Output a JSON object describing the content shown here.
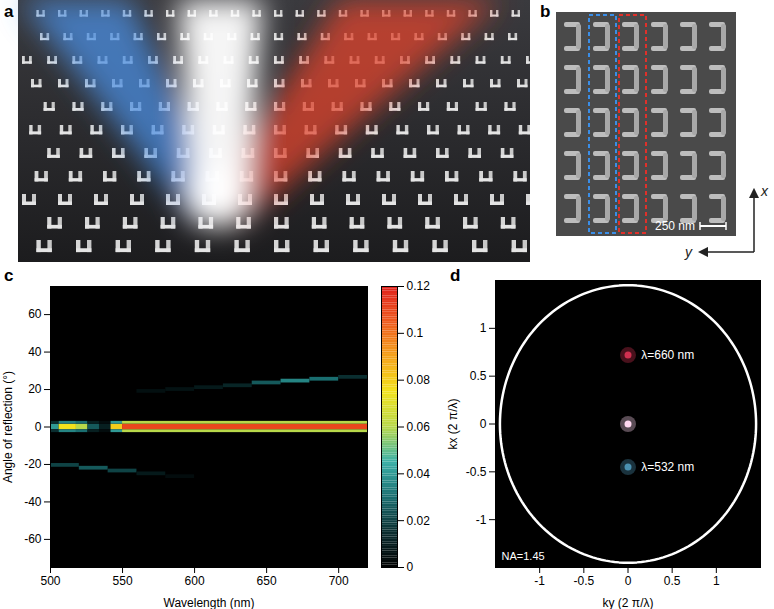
{
  "panels": {
    "a": {
      "label": "a"
    },
    "b": {
      "label": "b",
      "scale_bar": "250 nm",
      "axes": [
        "x",
        "y"
      ]
    }
  },
  "chart_data": [
    {
      "type": "heatmap",
      "label": "c",
      "x_label": "Wavelength (nm)",
      "y_label": "Angle of reflection (°)",
      "xlim": [
        500,
        720
      ],
      "xticks": [
        500,
        550,
        600,
        650,
        700
      ],
      "ylim": [
        -75,
        75
      ],
      "yticks": [
        -60,
        -40,
        -20,
        0,
        20,
        40,
        60
      ],
      "background": 0,
      "cells": [
        {
          "x1": 500,
          "x2": 506,
          "y1": -1.5,
          "y2": 1.5,
          "value": 0.04
        },
        {
          "x1": 506,
          "x2": 518,
          "y1": -1.5,
          "y2": 1.5,
          "value": 0.075
        },
        {
          "x1": 518,
          "x2": 526,
          "y1": -1.5,
          "y2": 1.5,
          "value": 0.06
        },
        {
          "x1": 526,
          "x2": 534,
          "y1": -1.5,
          "y2": 1.5,
          "value": 0.025
        },
        {
          "x1": 534,
          "x2": 542,
          "y1": -1.5,
          "y2": 1.5,
          "value": 0.01
        },
        {
          "x1": 542,
          "x2": 550,
          "y1": -1.5,
          "y2": 1.5,
          "value": 0.08
        },
        {
          "x1": 550,
          "x2": 720,
          "y1": -1.5,
          "y2": 1.5,
          "value": 0.11
        },
        {
          "x1": 500,
          "x2": 506,
          "y1": -3,
          "y2": -1.5,
          "value": 0.015
        },
        {
          "x1": 506,
          "x2": 518,
          "y1": -3,
          "y2": -1.5,
          "value": 0.035
        },
        {
          "x1": 518,
          "x2": 526,
          "y1": -3,
          "y2": -1.5,
          "value": 0.03
        },
        {
          "x1": 526,
          "x2": 534,
          "y1": -3,
          "y2": -1.5,
          "value": 0.01
        },
        {
          "x1": 534,
          "x2": 542,
          "y1": -3,
          "y2": -1.5,
          "value": 0.004
        },
        {
          "x1": 542,
          "x2": 550,
          "y1": -3,
          "y2": -1.5,
          "value": 0.04
        },
        {
          "x1": 550,
          "x2": 720,
          "y1": -3,
          "y2": -1.5,
          "value": 0.06
        },
        {
          "x1": 500,
          "x2": 506,
          "y1": 1.5,
          "y2": 3,
          "value": 0.015
        },
        {
          "x1": 506,
          "x2": 518,
          "y1": 1.5,
          "y2": 3,
          "value": 0.035
        },
        {
          "x1": 518,
          "x2": 526,
          "y1": 1.5,
          "y2": 3,
          "value": 0.03
        },
        {
          "x1": 526,
          "x2": 534,
          "y1": 1.5,
          "y2": 3,
          "value": 0.01
        },
        {
          "x1": 534,
          "x2": 542,
          "y1": 1.5,
          "y2": 3,
          "value": 0.004
        },
        {
          "x1": 542,
          "x2": 550,
          "y1": 1.5,
          "y2": 3,
          "value": 0.04
        },
        {
          "x1": 550,
          "x2": 720,
          "y1": 1.5,
          "y2": 3,
          "value": 0.06
        },
        {
          "x1": 560,
          "x2": 580,
          "y1": 18,
          "y2": 20,
          "value": 0.005
        },
        {
          "x1": 580,
          "x2": 600,
          "y1": 19,
          "y2": 21,
          "value": 0.006
        },
        {
          "x1": 600,
          "x2": 620,
          "y1": 20,
          "y2": 22,
          "value": 0.008
        },
        {
          "x1": 620,
          "x2": 640,
          "y1": 21,
          "y2": 23,
          "value": 0.012
        },
        {
          "x1": 640,
          "x2": 660,
          "y1": 22.5,
          "y2": 24.5,
          "value": 0.025
        },
        {
          "x1": 660,
          "x2": 680,
          "y1": 23.5,
          "y2": 25.5,
          "value": 0.035
        },
        {
          "x1": 680,
          "x2": 700,
          "y1": 24.5,
          "y2": 26.5,
          "value": 0.03
        },
        {
          "x1": 700,
          "x2": 720,
          "y1": 25.5,
          "y2": 27.5,
          "value": 0.015
        },
        {
          "x1": 500,
          "x2": 520,
          "y1": -21.5,
          "y2": -19.5,
          "value": 0.02
        },
        {
          "x1": 520,
          "x2": 540,
          "y1": -23,
          "y2": -21,
          "value": 0.025
        },
        {
          "x1": 540,
          "x2": 560,
          "y1": -24.5,
          "y2": -22.5,
          "value": 0.02
        },
        {
          "x1": 560,
          "x2": 580,
          "y1": -26,
          "y2": -24,
          "value": 0.008
        },
        {
          "x1": 580,
          "x2": 600,
          "y1": -27.5,
          "y2": -25.5,
          "value": 0.004
        }
      ],
      "colorbar": {
        "lim": [
          0,
          0.12
        ],
        "ticks": [
          0,
          0.02,
          0.04,
          0.06,
          0.08,
          0.1,
          0.12
        ],
        "colors": [
          "#000000",
          "#0a2e30",
          "#1a6e70",
          "#3bb0a8",
          "#b8d84a",
          "#f2e21c",
          "#f5a21a",
          "#ee5a1e",
          "#e0201c"
        ]
      }
    },
    {
      "type": "scatter",
      "label": "d",
      "x_label": "ky (2 π/λ)",
      "y_label": "kx (2 π/λ)",
      "xlim": [
        -1.5,
        1.5
      ],
      "xticks": [
        -1,
        -0.5,
        0,
        0.5,
        1
      ],
      "ylim": [
        -1.5,
        1.5
      ],
      "yticks": [
        -1,
        -0.5,
        0,
        0.5,
        1
      ],
      "circle": {
        "radius": 1.45,
        "label": "NA=1.45"
      },
      "points": [
        {
          "x": 0,
          "y": 0,
          "color": "#ffd8f0"
        },
        {
          "x": 0,
          "y": 0.72,
          "color": "#d03050"
        },
        {
          "x": 0,
          "y": -0.45,
          "color": "#4a90b0"
        }
      ],
      "annotations": [
        {
          "text": "λ=660 nm",
          "x": 0.15,
          "y": 0.72
        },
        {
          "text": "λ=532 nm",
          "x": 0.15,
          "y": -0.45
        }
      ]
    }
  ]
}
